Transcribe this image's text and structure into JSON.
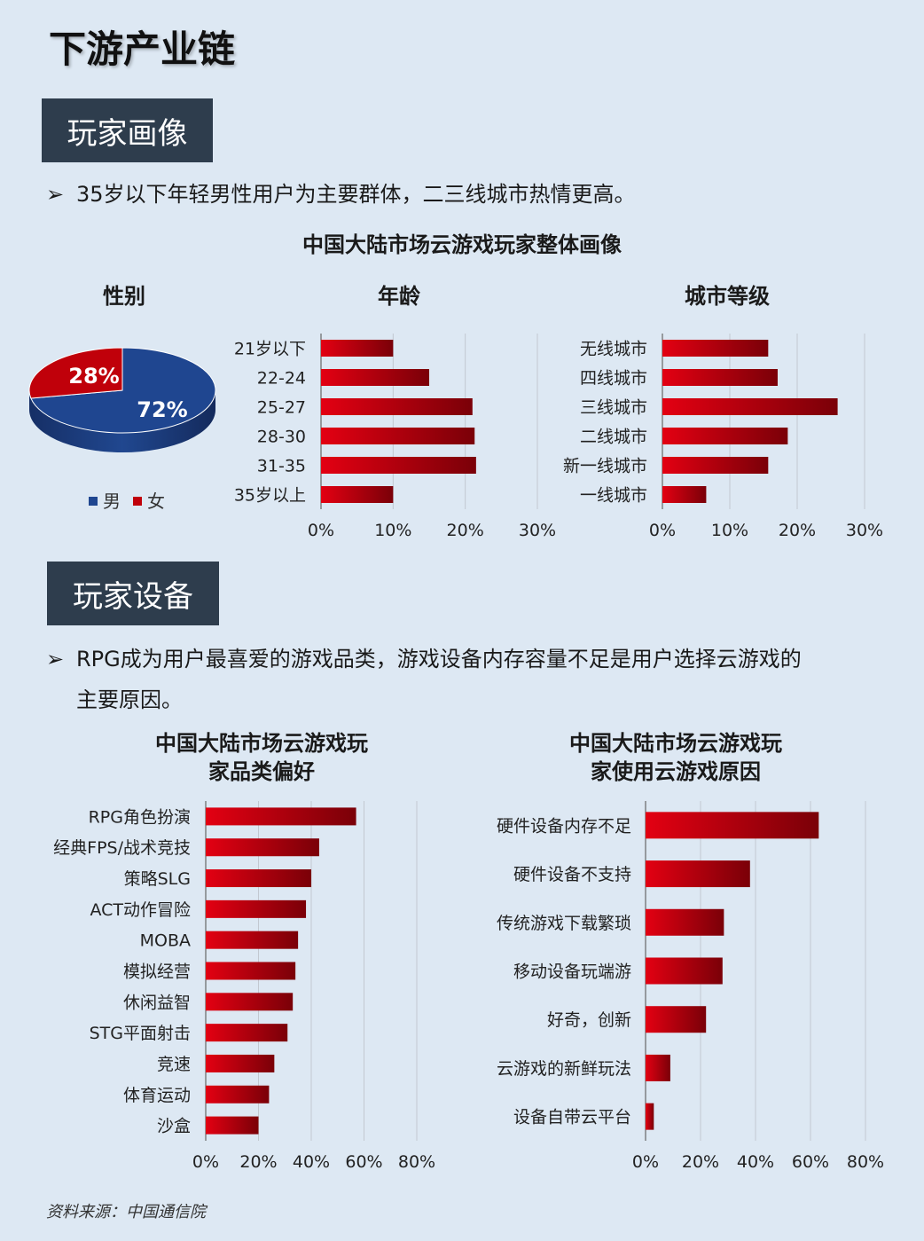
{
  "page_title": "下游产业链",
  "section1": {
    "title": "玩家画像",
    "bullet": "35岁以下年轻男性用户为主要群体，二三线城市热情更高。",
    "main_chart_title": "中国大陆市场云游戏玩家整体画像"
  },
  "section2": {
    "title": "玩家设备",
    "bullet_line1": "RPG成为用户最喜爱的游戏品类，游戏设备内存容量不足是用户选择云游戏的",
    "bullet_line2": "主要原因。"
  },
  "bullet_marker": "➢",
  "source": "资料来源：中国通信院",
  "colors": {
    "male": "#1f4690",
    "female": "#c0000a",
    "bar_dark": "#7a0008",
    "bar_light": "#e30012"
  },
  "chart_data": [
    {
      "type": "pie",
      "title": "性别",
      "categories": [
        "男",
        "女"
      ],
      "values": [
        72,
        28
      ],
      "data_labels": [
        "72%",
        "28%"
      ],
      "legend": "bottom"
    },
    {
      "type": "bar",
      "orientation": "horizontal",
      "title": "年龄",
      "categories": [
        "21岁以下",
        "22-24",
        "25-27",
        "28-30",
        "31-35",
        "35岁以上"
      ],
      "values": [
        10,
        15,
        21,
        21.3,
        21.5,
        10
      ],
      "xlim": [
        0,
        30
      ],
      "xticks": [
        "0%",
        "10%",
        "20%",
        "30%"
      ],
      "grid": true
    },
    {
      "type": "bar",
      "orientation": "horizontal",
      "title": "城市等级",
      "categories": [
        "无线城市",
        "四线城市",
        "三线城市",
        "二线城市",
        "新一线城市",
        "一线城市"
      ],
      "values": [
        15.7,
        17.1,
        26,
        18.6,
        15.7,
        6.5
      ],
      "xlim": [
        0,
        30
      ],
      "xticks": [
        "0%",
        "10%",
        "20%",
        "30%"
      ],
      "grid": true
    },
    {
      "type": "bar",
      "orientation": "horizontal",
      "title": "中国大陆市场云游戏玩家品类偏好",
      "title_lines": [
        "中国大陆市场云游戏玩",
        "家品类偏好"
      ],
      "categories": [
        "RPG角色扮演",
        "经典FPS/战术竞技",
        "策略SLG",
        "ACT动作冒险",
        "MOBA",
        "模拟经营",
        "休闲益智",
        "STG平面射击",
        "竞速",
        "体育运动",
        "沙盒"
      ],
      "values": [
        57,
        43,
        40,
        38,
        35,
        34,
        33,
        31,
        26,
        24,
        20
      ],
      "xlim": [
        0,
        80
      ],
      "xticks": [
        "0%",
        "20%",
        "40%",
        "60%",
        "80%"
      ],
      "grid": true
    },
    {
      "type": "bar",
      "orientation": "horizontal",
      "title": "中国大陆市场云游戏玩家使用云游戏原因",
      "title_lines": [
        "中国大陆市场云游戏玩",
        "家使用云游戏原因"
      ],
      "categories": [
        "硬件设备内存不足",
        "硬件设备不支持",
        "传统游戏下载繁琐",
        "移动设备玩端游",
        "好奇，创新",
        "云游戏的新鲜玩法",
        "设备自带云平台"
      ],
      "values": [
        63,
        38,
        28.5,
        28,
        22,
        9,
        3
      ],
      "xlim": [
        0,
        80
      ],
      "xticks": [
        "0%",
        "20%",
        "40%",
        "60%",
        "80%"
      ],
      "grid": true
    }
  ]
}
